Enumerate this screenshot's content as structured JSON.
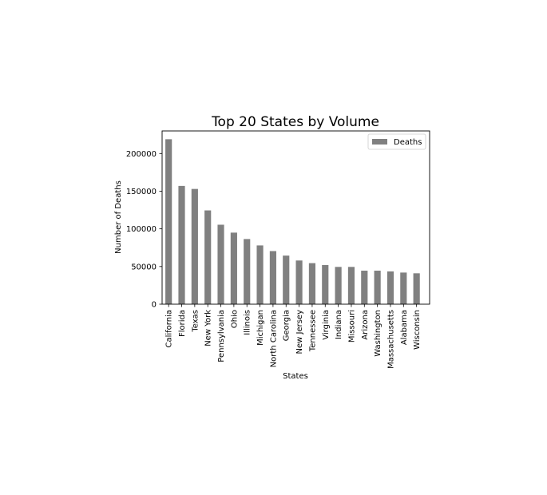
{
  "chart_data": {
    "type": "bar",
    "title": "Top 20 States by Volume",
    "xlabel": "States",
    "ylabel": "Number of Deaths",
    "categories": [
      "California",
      "Florida",
      "Texas",
      "New York",
      "Pennsylvania",
      "Ohio",
      "Illinois",
      "Michigan",
      "North Carolina",
      "Georgia",
      "New Jersey",
      "Tennessee",
      "Virginia",
      "Indiana",
      "Missouri",
      "Arizona",
      "Washington",
      "Massachusetts",
      "Alabama",
      "Wisconsin"
    ],
    "series": [
      {
        "name": "Deaths",
        "values": [
          219000,
          157000,
          153000,
          124500,
          105500,
          95000,
          86500,
          78000,
          70500,
          64500,
          58000,
          54500,
          52000,
          49500,
          49500,
          44500,
          44500,
          43500,
          42000,
          41000
        ]
      }
    ],
    "ylim": [
      0,
      230000
    ],
    "yticks": [
      0,
      50000,
      100000,
      150000,
      200000
    ],
    "ytick_labels": [
      "0",
      "50000",
      "100000",
      "150000",
      "200000"
    ],
    "legend_position": "top-right",
    "colors": {
      "bar": "#808080",
      "axes": "#000000",
      "background": "#ffffff"
    }
  }
}
